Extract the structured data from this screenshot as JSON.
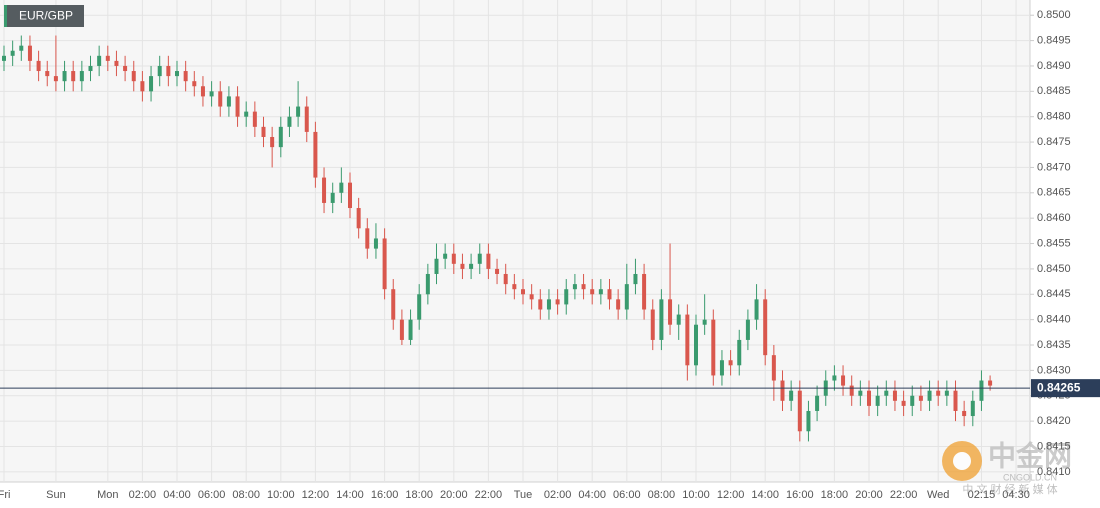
{
  "chart_data": {
    "type": "candlestick",
    "title": "EUR/GBP",
    "categories": [
      "Fri",
      null,
      null,
      null,
      null,
      null,
      "Sun",
      null,
      null,
      null,
      null,
      null,
      "Mon",
      null,
      null,
      null,
      "02:00",
      null,
      null,
      null,
      "04:00",
      null,
      null,
      null,
      "06:00",
      null,
      null,
      null,
      "08:00",
      null,
      null,
      null,
      "10:00",
      null,
      null,
      null,
      "12:00",
      null,
      null,
      null,
      "14:00",
      null,
      null,
      null,
      "16:00",
      null,
      null,
      null,
      "18:00",
      null,
      null,
      null,
      "20:00",
      null,
      null,
      null,
      "22:00",
      null,
      null,
      null,
      "Tue",
      null,
      null,
      null,
      "02:00",
      null,
      null,
      null,
      "04:00",
      null,
      null,
      null,
      "06:00",
      null,
      null,
      null,
      "08:00",
      null,
      null,
      null,
      "10:00",
      null,
      null,
      null,
      "12:00",
      null,
      null,
      null,
      "14:00",
      null,
      null,
      null,
      "16:00",
      null,
      null,
      null,
      "18:00",
      null,
      null,
      null,
      "20:00",
      null,
      null,
      null,
      "22:00",
      null,
      null,
      null,
      "Wed",
      null,
      null,
      null,
      null,
      "02:15",
      null,
      null,
      null,
      "04:30"
    ],
    "open": [
      0.8491,
      0.8492,
      0.8493,
      0.8494,
      0.8491,
      0.8489,
      0.8488,
      0.8487,
      0.8489,
      0.8487,
      0.8489,
      0.849,
      0.8492,
      0.8491,
      0.849,
      0.8489,
      0.8487,
      0.8485,
      0.8488,
      0.849,
      0.8488,
      0.8489,
      0.8487,
      0.8486,
      0.8484,
      0.8485,
      0.8482,
      0.8484,
      0.848,
      0.8481,
      0.8478,
      0.8476,
      0.8474,
      0.8478,
      0.848,
      0.8482,
      0.8477,
      0.8468,
      0.8463,
      0.8465,
      0.8467,
      0.8462,
      0.8458,
      0.8454,
      0.8456,
      0.8446,
      0.844,
      0.8436,
      0.844,
      0.8445,
      0.8449,
      0.8452,
      0.8453,
      0.8451,
      0.845,
      0.8451,
      0.8453,
      0.845,
      0.8449,
      0.8447,
      0.8446,
      0.8445,
      0.8444,
      0.8442,
      0.8444,
      0.8443,
      0.8446,
      0.8447,
      0.8446,
      0.8445,
      0.8446,
      0.8444,
      0.8442,
      0.8447,
      0.8449,
      0.8442,
      0.8436,
      0.8444,
      0.8439,
      0.8441,
      0.8431,
      0.8439,
      0.844,
      0.8429,
      0.8432,
      0.8431,
      0.8436,
      0.844,
      0.8444,
      0.8433,
      0.8428,
      0.8424,
      0.8426,
      0.8418,
      0.8422,
      0.8425,
      0.8428,
      0.8429,
      0.8427,
      0.8425,
      0.8426,
      0.8423,
      0.8425,
      0.8426,
      0.8424,
      0.8423,
      0.8425,
      0.8424,
      0.8426,
      0.8425,
      0.8426,
      0.8422,
      0.8421,
      0.8424,
      0.8428,
      null,
      null,
      null
    ],
    "high": [
      0.8494,
      0.8495,
      0.8496,
      0.8496,
      0.8493,
      0.8491,
      0.8496,
      0.8491,
      0.8491,
      0.8491,
      0.8492,
      0.8494,
      0.8494,
      0.8493,
      0.8492,
      0.8491,
      0.8489,
      0.849,
      0.8492,
      0.8492,
      0.8491,
      0.8491,
      0.8489,
      0.8488,
      0.8487,
      0.8487,
      0.8486,
      0.8486,
      0.8483,
      0.8483,
      0.848,
      0.8478,
      0.848,
      0.8482,
      0.8487,
      0.8484,
      0.8479,
      0.847,
      0.8467,
      0.847,
      0.8469,
      0.8464,
      0.846,
      0.8459,
      0.8458,
      0.8448,
      0.8442,
      0.8442,
      0.8447,
      0.8451,
      0.8455,
      0.8455,
      0.8455,
      0.8453,
      0.8453,
      0.8455,
      0.8455,
      0.8452,
      0.8451,
      0.8449,
      0.8448,
      0.8447,
      0.8446,
      0.8446,
      0.8446,
      0.8448,
      0.8449,
      0.8449,
      0.8448,
      0.8448,
      0.8448,
      0.8446,
      0.8451,
      0.8452,
      0.8451,
      0.8444,
      0.8446,
      0.8455,
      0.8443,
      0.8443,
      0.8441,
      0.8445,
      0.8442,
      0.8434,
      0.8434,
      0.8438,
      0.8442,
      0.8447,
      0.8446,
      0.8435,
      0.843,
      0.8428,
      0.8428,
      0.8424,
      0.8427,
      0.843,
      0.8431,
      0.8431,
      0.8429,
      0.8428,
      0.8428,
      0.8427,
      0.8428,
      0.8428,
      0.8426,
      0.8427,
      0.8427,
      0.8428,
      0.8428,
      0.8428,
      0.8428,
      0.8424,
      0.8426,
      0.843,
      0.8429,
      null,
      null,
      null
    ],
    "low": [
      0.8489,
      0.849,
      0.8491,
      0.8489,
      0.8487,
      0.8486,
      0.8485,
      0.8485,
      0.8485,
      0.8485,
      0.8487,
      0.8488,
      0.8489,
      0.8488,
      0.8487,
      0.8485,
      0.8483,
      0.8483,
      0.8486,
      0.8486,
      0.8486,
      0.8485,
      0.8484,
      0.8482,
      0.8482,
      0.848,
      0.848,
      0.8478,
      0.8478,
      0.8476,
      0.8474,
      0.847,
      0.8472,
      0.8476,
      0.8478,
      0.8475,
      0.8466,
      0.8461,
      0.8461,
      0.8463,
      0.846,
      0.8456,
      0.8452,
      0.8452,
      0.8444,
      0.8438,
      0.8435,
      0.8435,
      0.8438,
      0.8443,
      0.8447,
      0.845,
      0.8449,
      0.8448,
      0.8448,
      0.8449,
      0.8448,
      0.8447,
      0.8445,
      0.8444,
      0.8443,
      0.8442,
      0.844,
      0.844,
      0.8441,
      0.8441,
      0.8444,
      0.8444,
      0.8443,
      0.8443,
      0.8442,
      0.844,
      0.844,
      0.8445,
      0.844,
      0.8434,
      0.8434,
      0.8437,
      0.8436,
      0.8428,
      0.8429,
      0.8437,
      0.8427,
      0.8427,
      0.8429,
      0.8429,
      0.8434,
      0.8438,
      0.8431,
      0.8424,
      0.8422,
      0.8422,
      0.8416,
      0.8416,
      0.842,
      0.8423,
      0.8426,
      0.8425,
      0.8423,
      0.8423,
      0.8421,
      0.8421,
      0.8423,
      0.8422,
      0.8421,
      0.8421,
      0.8422,
      0.8422,
      0.8423,
      0.8423,
      0.842,
      0.8419,
      0.8419,
      0.8422,
      0.8426,
      null,
      null,
      null
    ],
    "close": [
      0.8492,
      0.8493,
      0.8494,
      0.8491,
      0.8489,
      0.8488,
      0.8487,
      0.8489,
      0.8487,
      0.8489,
      0.849,
      0.8492,
      0.8491,
      0.849,
      0.8489,
      0.8487,
      0.8485,
      0.8488,
      0.849,
      0.8488,
      0.8489,
      0.8487,
      0.8486,
      0.8484,
      0.8485,
      0.8482,
      0.8484,
      0.848,
      0.8481,
      0.8478,
      0.8476,
      0.8474,
      0.8478,
      0.848,
      0.8482,
      0.8477,
      0.8468,
      0.8463,
      0.8465,
      0.8467,
      0.8462,
      0.8458,
      0.8454,
      0.8456,
      0.8446,
      0.844,
      0.8436,
      0.844,
      0.8445,
      0.8449,
      0.8452,
      0.8453,
      0.8451,
      0.845,
      0.8451,
      0.8453,
      0.845,
      0.8449,
      0.8447,
      0.8446,
      0.8445,
      0.8444,
      0.8442,
      0.8444,
      0.8443,
      0.8446,
      0.8447,
      0.8446,
      0.8445,
      0.8446,
      0.8444,
      0.8442,
      0.8447,
      0.8449,
      0.8442,
      0.8436,
      0.8444,
      0.8439,
      0.8441,
      0.8431,
      0.8439,
      0.844,
      0.8429,
      0.8432,
      0.8431,
      0.8436,
      0.844,
      0.8444,
      0.8433,
      0.8428,
      0.8424,
      0.8426,
      0.8418,
      0.8422,
      0.8425,
      0.8428,
      0.8429,
      0.8427,
      0.8425,
      0.8426,
      0.8423,
      0.8425,
      0.8426,
      0.8424,
      0.8423,
      0.8425,
      0.8424,
      0.8426,
      0.8425,
      0.8426,
      0.8422,
      0.8421,
      0.8424,
      0.8428,
      0.8427,
      null,
      null,
      null
    ],
    "up_color": "#3a9a6e",
    "down_color": "#d9574d",
    "ylim": [
      0.8408,
      0.8503
    ],
    "yticks": [
      {
        "value": 0.841,
        "label": "0.8410"
      },
      {
        "value": 0.8415,
        "label": "0.8415"
      },
      {
        "value": 0.842,
        "label": "0.8420"
      },
      {
        "value": 0.8425,
        "label": "0.8425"
      },
      {
        "value": 0.843,
        "label": "0.8430"
      },
      {
        "value": 0.8435,
        "label": "0.8435"
      },
      {
        "value": 0.844,
        "label": "0.8440"
      },
      {
        "value": 0.8445,
        "label": "0.8445"
      },
      {
        "value": 0.845,
        "label": "0.8450"
      },
      {
        "value": 0.8455,
        "label": "0.8455"
      },
      {
        "value": 0.846,
        "label": "0.8460"
      },
      {
        "value": 0.8465,
        "label": "0.8465"
      },
      {
        "value": 0.847,
        "label": "0.8470"
      },
      {
        "value": 0.8475,
        "label": "0.8475"
      },
      {
        "value": 0.848,
        "label": "0.8480"
      },
      {
        "value": 0.8485,
        "label": "0.8485"
      },
      {
        "value": 0.849,
        "label": "0.8490"
      },
      {
        "value": 0.8495,
        "label": "0.8495"
      },
      {
        "value": 0.85,
        "label": "0.8500"
      }
    ],
    "grid": true,
    "last_price": 0.84265
  },
  "watermark": {
    "name": "中金网",
    "site": "CNGOLD.CN",
    "slogan": "中 文 财 经 新 媒 体"
  }
}
